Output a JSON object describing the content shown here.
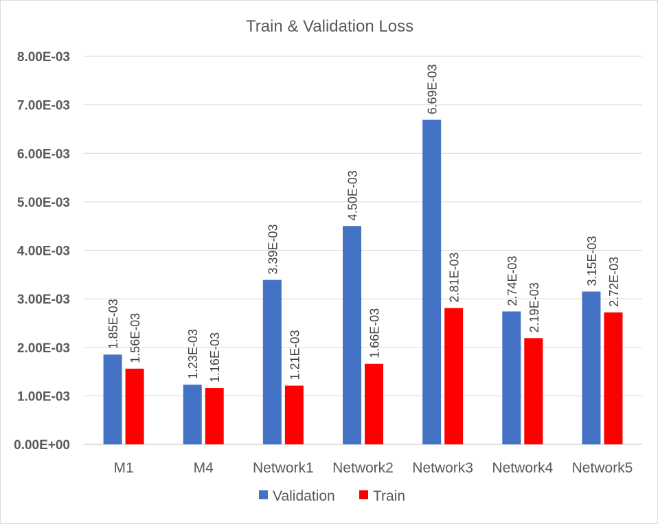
{
  "chart_data": {
    "type": "bar",
    "title": "Train & Validation Loss",
    "xlabel": "",
    "ylabel": "",
    "categories": [
      "M1",
      "M4",
      "Network1",
      "Network2",
      "Network3",
      "Network4",
      "Network5"
    ],
    "series": [
      {
        "name": "Validation",
        "color": "#4472c4",
        "values": [
          0.00185,
          0.00123,
          0.00339,
          0.0045,
          0.00669,
          0.00274,
          0.00315
        ],
        "labels": [
          "1.85E-03",
          "1.23E-03",
          "3.39E-03",
          "4.50E-03",
          "6.69E-03",
          "2.74E-03",
          "3.15E-03"
        ]
      },
      {
        "name": "Train",
        "color": "#ff0000",
        "values": [
          0.00156,
          0.00116,
          0.00121,
          0.00166,
          0.00281,
          0.00219,
          0.00272
        ],
        "labels": [
          "1.56E-03",
          "1.16E-03",
          "1.21E-03",
          "1.66E-03",
          "2.81E-03",
          "2.19E-03",
          "2.72E-03"
        ]
      }
    ],
    "ylim": [
      0,
      0.008
    ],
    "yticks": [
      0,
      0.001,
      0.002,
      0.003,
      0.004,
      0.005,
      0.006,
      0.007,
      0.008
    ],
    "ytick_labels": [
      "0.00E+00",
      "1.00E-03",
      "2.00E-03",
      "3.00E-03",
      "4.00E-03",
      "5.00E-03",
      "6.00E-03",
      "7.00E-03",
      "8.00E-03"
    ],
    "grid": true,
    "legend_position": "bottom-center",
    "data_labels": true,
    "data_label_orientation": "vertical"
  }
}
